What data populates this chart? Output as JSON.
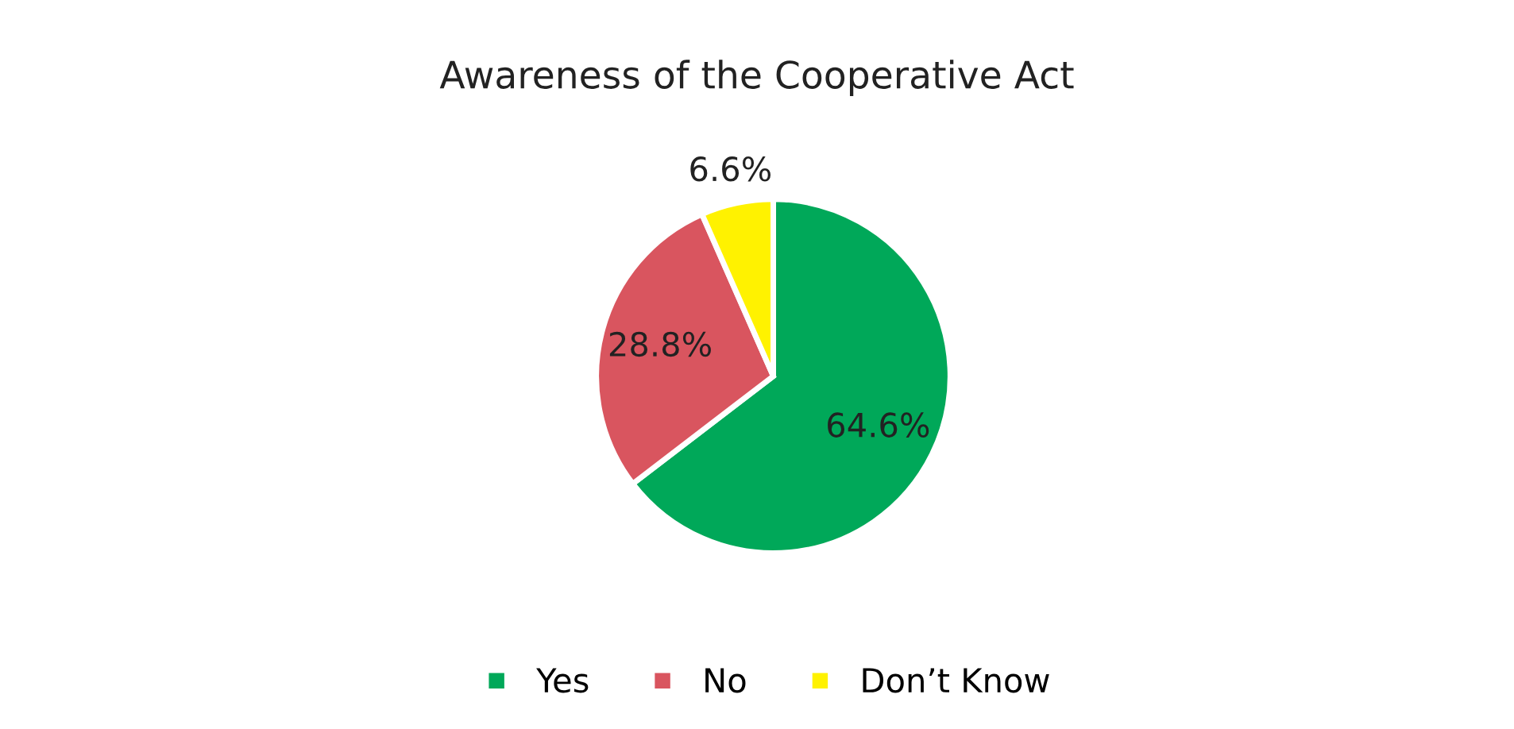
{
  "chart_data": {
    "type": "pie",
    "title": "Awareness of the Cooperative Act",
    "categories": [
      "Yes",
      "No",
      "Don’t Know"
    ],
    "values": [
      64.6,
      28.8,
      6.6
    ],
    "colors": [
      "#00a859",
      "#d9555f",
      "#fff200"
    ],
    "value_labels": [
      "64.6%",
      "28.8%",
      "6.6%"
    ],
    "legend": "bottom"
  }
}
